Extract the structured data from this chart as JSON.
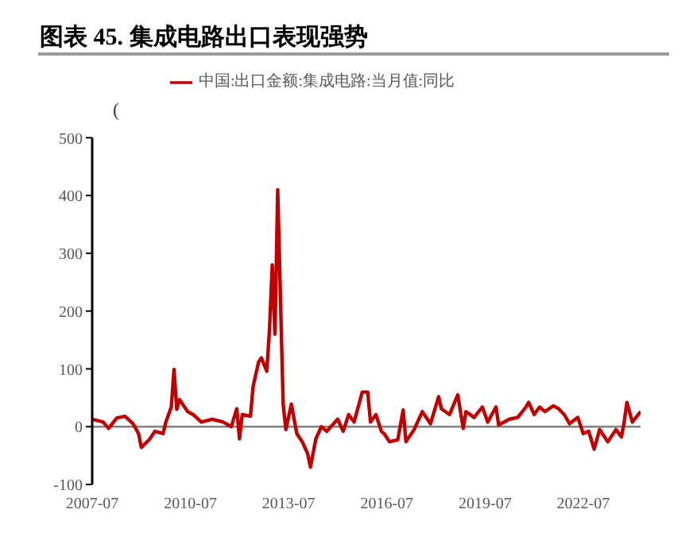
{
  "chart_data": {
    "type": "line",
    "title": "图表 45. 集成电路出口表现强势",
    "ylabel": "(",
    "x": [
      "2007-07",
      "2007-11",
      "2008-01",
      "2008-04",
      "2008-07",
      "2008-10",
      "2008-12",
      "2009-01",
      "2009-04",
      "2009-06",
      "2009-09",
      "2009-10",
      "2009-12",
      "2010-01",
      "2010-02",
      "2010-03",
      "2010-06",
      "2010-08",
      "2010-11",
      "2011-03",
      "2011-07",
      "2011-10",
      "2011-12",
      "2012-01",
      "2012-02",
      "2012-05",
      "2012-06",
      "2012-08",
      "2012-09",
      "2012-11",
      "2012-12",
      "2013-01",
      "2013-02",
      "2013-03",
      "2013-05",
      "2013-06",
      "2013-08",
      "2013-10",
      "2013-12",
      "2014-02",
      "2014-03",
      "2014-05",
      "2014-07",
      "2014-09",
      "2015-01",
      "2015-03",
      "2015-05",
      "2015-07",
      "2015-10",
      "2015-12",
      "2016-01",
      "2016-03",
      "2016-05",
      "2016-06",
      "2016-08",
      "2016-11",
      "2017-01",
      "2017-02",
      "2017-05",
      "2017-08",
      "2017-11",
      "2018-02",
      "2018-03",
      "2018-06",
      "2018-09",
      "2018-11",
      "2018-12",
      "2019-03",
      "2019-06",
      "2019-08",
      "2019-11",
      "2019-12",
      "2020-04",
      "2020-07",
      "2020-10",
      "2020-11",
      "2021-01",
      "2021-03",
      "2021-05",
      "2021-08",
      "2021-10",
      "2021-12",
      "2022-02",
      "2022-05",
      "2022-07",
      "2022-09",
      "2022-11",
      "2023-01",
      "2023-04",
      "2023-07",
      "2023-09",
      "2023-10",
      "2023-11",
      "2024-01",
      "2024-04"
    ],
    "series": [
      {
        "name": "中国:出口金额:集成电路:当月值:同比",
        "color": "#c00000",
        "values": [
          13,
          8,
          -3,
          15,
          18,
          5,
          -12,
          -36,
          -22,
          -8,
          -12,
          8,
          34,
          99,
          30,
          47,
          26,
          21,
          8,
          13,
          8,
          0,
          31,
          -21,
          21,
          18,
          70,
          112,
          119,
          96,
          169,
          280,
          160,
          410,
          39,
          -5,
          39,
          -12,
          -26,
          -47,
          -70,
          -21,
          0,
          -8,
          13,
          -8,
          21,
          8,
          60,
          60,
          8,
          21,
          -8,
          -12,
          -26,
          -23,
          29,
          -26,
          -5,
          26,
          5,
          52,
          31,
          21,
          55,
          -3,
          26,
          16,
          34,
          8,
          34,
          3,
          13,
          16,
          34,
          42,
          21,
          34,
          26,
          36,
          31,
          21,
          5,
          16,
          -12,
          -8,
          -39,
          -5,
          -26,
          -5,
          -18,
          8,
          42,
          8,
          26
        ]
      }
    ],
    "xlim": [
      "2007-07",
      "2024-04"
    ],
    "xticks": [
      "2007-07",
      "2010-07",
      "2013-07",
      "2016-07",
      "2019-07",
      "2022-07"
    ],
    "ylim": [
      -100,
      500
    ],
    "yticks": [
      -100,
      0,
      100,
      200,
      300,
      400,
      500
    ],
    "ref_lines": [
      {
        "axis": "y",
        "value": 0,
        "color": "#808080"
      }
    ],
    "legend": "top",
    "marker": "none",
    "line_style": "solid"
  }
}
